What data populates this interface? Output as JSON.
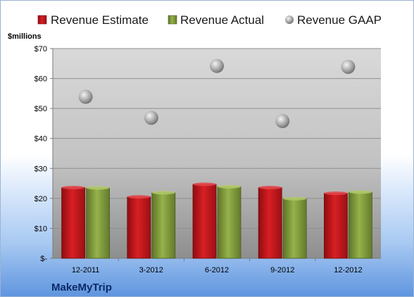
{
  "chart_data": {
    "type": "bar",
    "unit_label": "$millions",
    "brand": "MakeMyTrip",
    "categories": [
      "12-2011",
      "3-2012",
      "6-2012",
      "9-2012",
      "12-2012"
    ],
    "series": [
      {
        "name": "Revenue Estimate",
        "kind": "bar",
        "color": "#c0171c",
        "values": [
          23.6,
          20.5,
          24.7,
          23.6,
          21.7
        ]
      },
      {
        "name": "Revenue Actual",
        "kind": "bar",
        "color": "#7f9a3c",
        "values": [
          23.5,
          21.9,
          23.9,
          19.9,
          22.1
        ]
      },
      {
        "name": "Revenue GAAP",
        "kind": "point",
        "color": "#a9a9a9",
        "values": [
          53.9,
          46.9,
          64.2,
          45.8,
          63.9
        ]
      }
    ],
    "yticks": [
      "$-",
      "$10",
      "$20",
      "$30",
      "$40",
      "$50",
      "$60",
      "$70"
    ],
    "ylim": [
      0,
      70
    ],
    "grid": true,
    "legend_position": "top"
  }
}
